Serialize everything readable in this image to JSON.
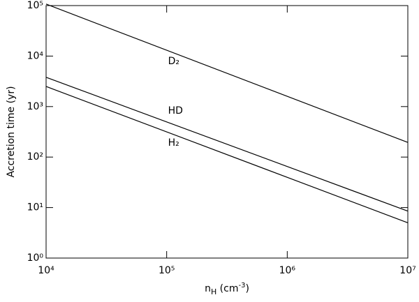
{
  "chart_data": {
    "type": "line",
    "y_label": "Accretion time (yr)",
    "x_label": {
      "main": "n",
      "sub": "H",
      "rest": " (cm",
      "sup": "-3",
      "end": ")"
    },
    "x": [
      10000,
      10000000
    ],
    "series": [
      {
        "name": "D₂",
        "color": "#000000",
        "values": [
          107000,
          195
        ]
      },
      {
        "name": "HD",
        "color": "#000000",
        "values": [
          3800,
          8.5
        ]
      },
      {
        "name": "H₂",
        "color": "#000000",
        "values": [
          2500,
          5.0
        ]
      }
    ],
    "xlog": true,
    "ylog": true,
    "xlim": [
      10000,
      10000000
    ],
    "ylim": [
      1,
      100000
    ],
    "xticks": [
      {
        "value": 10000,
        "label": "10⁴"
      },
      {
        "value": 100000,
        "label": "10⁵"
      },
      {
        "value": 1000000,
        "label": "10⁶"
      },
      {
        "value": 10000000,
        "label": "10⁷"
      }
    ],
    "yticks": [
      {
        "value": 1,
        "label": "10⁰"
      },
      {
        "value": 10,
        "label": "10¹"
      },
      {
        "value": 100,
        "label": "10²"
      },
      {
        "value": 1000,
        "label": "10³"
      },
      {
        "value": 10000,
        "label": "10⁴"
      },
      {
        "value": 100000,
        "label": "10⁵"
      }
    ],
    "grid": false
  }
}
